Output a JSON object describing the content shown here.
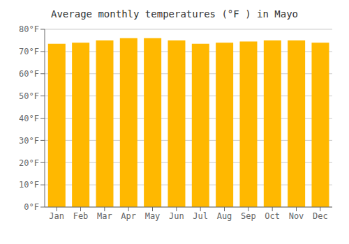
{
  "chart_data": {
    "type": "bar",
    "title": "Average monthly temperatures (°F ) in Mayo",
    "categories": [
      "Jan",
      "Feb",
      "Mar",
      "Apr",
      "May",
      "Jun",
      "Jul",
      "Aug",
      "Sep",
      "Oct",
      "Nov",
      "Dec"
    ],
    "values": [
      73.5,
      74.0,
      75.0,
      76.0,
      76.0,
      75.0,
      73.5,
      74.0,
      74.5,
      75.0,
      75.0,
      74.0
    ],
    "color": "#FFB800",
    "ylim": [
      0,
      80
    ],
    "yticks": [
      {
        "value": 0,
        "label": "0°F"
      },
      {
        "value": 10,
        "label": "10°F"
      },
      {
        "value": 20,
        "label": "20°F"
      },
      {
        "value": 30,
        "label": "30°F"
      },
      {
        "value": 40,
        "label": "40°F"
      },
      {
        "value": 50,
        "label": "50°F"
      },
      {
        "value": 60,
        "label": "60°F"
      },
      {
        "value": 70,
        "label": "70°F"
      },
      {
        "value": 80,
        "label": "80°F"
      }
    ],
    "grid": true
  }
}
